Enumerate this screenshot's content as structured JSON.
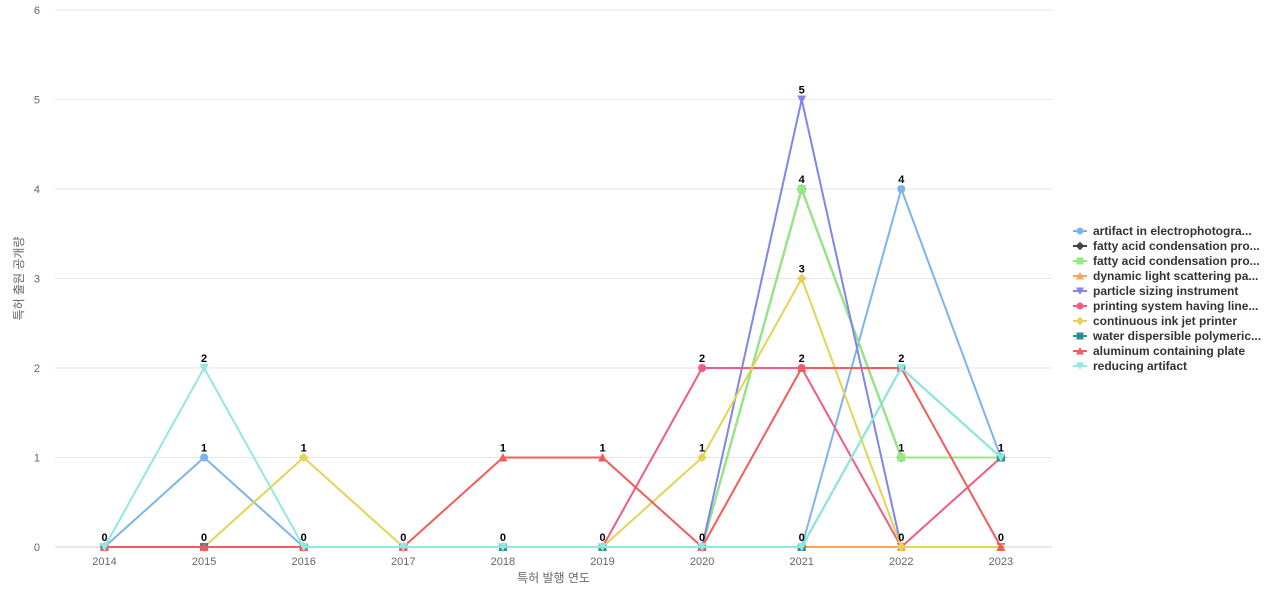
{
  "chart_data": {
    "type": "line",
    "title": "",
    "xlabel": "특허 발행 연도",
    "ylabel": "특허 출원 공개량",
    "x": [
      "2014",
      "2015",
      "2016",
      "2017",
      "2018",
      "2019",
      "2020",
      "2021",
      "2022",
      "2023"
    ],
    "ylim": [
      0,
      6
    ],
    "yticks": [
      "0",
      "1",
      "2",
      "3",
      "4",
      "5",
      "6"
    ],
    "grid": true,
    "legend_position": "right",
    "series": [
      {
        "name": "artifact in electrophotogra...",
        "color": "#7cb5ec",
        "marker": "circle",
        "values": [
          0,
          1,
          0,
          0,
          0,
          0,
          0,
          0,
          4,
          1
        ]
      },
      {
        "name": "fatty acid condensation pro...",
        "color": "#434348",
        "marker": "diamond",
        "values": [
          0,
          0,
          0,
          0,
          0,
          0,
          0,
          4,
          1,
          1
        ]
      },
      {
        "name": "fatty acid condensation pro...",
        "color": "#90ed7d",
        "marker": "square",
        "values": [
          0,
          0,
          0,
          0,
          0,
          0,
          0,
          4,
          1,
          1
        ]
      },
      {
        "name": "dynamic light scattering pa...",
        "color": "#f7a35c",
        "marker": "triangle",
        "values": [
          0,
          0,
          0,
          0,
          0,
          0,
          0,
          0,
          0,
          0
        ]
      },
      {
        "name": "particle sizing instrument",
        "color": "#8085e9",
        "marker": "triangle-down",
        "values": [
          0,
          0,
          0,
          0,
          0,
          0,
          0,
          5,
          0,
          0
        ]
      },
      {
        "name": "printing system having line...",
        "color": "#f15c80",
        "marker": "circle",
        "values": [
          0,
          0,
          0,
          0,
          0,
          0,
          2,
          2,
          0,
          1
        ]
      },
      {
        "name": "continuous ink jet printer",
        "color": "#e4d354",
        "marker": "diamond",
        "values": [
          0,
          0,
          1,
          0,
          0,
          0,
          1,
          3,
          0,
          0
        ]
      },
      {
        "name": "water dispersible polymeric...",
        "color": "#2b908f",
        "marker": "square",
        "values": [
          0,
          0,
          0,
          0,
          0,
          0,
          0,
          0,
          2,
          1
        ]
      },
      {
        "name": "aluminum containing plate",
        "color": "#f45b5b",
        "marker": "triangle",
        "values": [
          0,
          0,
          0,
          0,
          1,
          1,
          0,
          2,
          2,
          0
        ]
      },
      {
        "name": "reducing artifact",
        "color": "#91e8e1",
        "marker": "triangle-down",
        "values": [
          0,
          2,
          0,
          0,
          0,
          0,
          0,
          0,
          2,
          1
        ]
      }
    ],
    "data_labels": [
      {
        "x": "2014",
        "value": "0"
      },
      {
        "x": "2015",
        "value": "2"
      },
      {
        "x": "2015",
        "value": "1"
      },
      {
        "x": "2015",
        "value": "0"
      },
      {
        "x": "2016",
        "value": "1"
      },
      {
        "x": "2016",
        "value": "0"
      },
      {
        "x": "2017",
        "value": "0"
      },
      {
        "x": "2018",
        "value": "1"
      },
      {
        "x": "2018",
        "value": "0"
      },
      {
        "x": "2019",
        "value": "1"
      },
      {
        "x": "2019",
        "value": "0"
      },
      {
        "x": "2020",
        "value": "2"
      },
      {
        "x": "2020",
        "value": "1"
      },
      {
        "x": "2020",
        "value": "0"
      },
      {
        "x": "2021",
        "value": "5"
      },
      {
        "x": "2021",
        "value": "4"
      },
      {
        "x": "2021",
        "value": "3"
      },
      {
        "x": "2021",
        "value": "2"
      },
      {
        "x": "2021",
        "value": "0"
      },
      {
        "x": "2022",
        "value": "4"
      },
      {
        "x": "2022",
        "value": "2"
      },
      {
        "x": "2022",
        "value": "1"
      },
      {
        "x": "2022",
        "value": "0"
      },
      {
        "x": "2023",
        "value": "1"
      },
      {
        "x": "2023",
        "value": "0"
      }
    ]
  }
}
